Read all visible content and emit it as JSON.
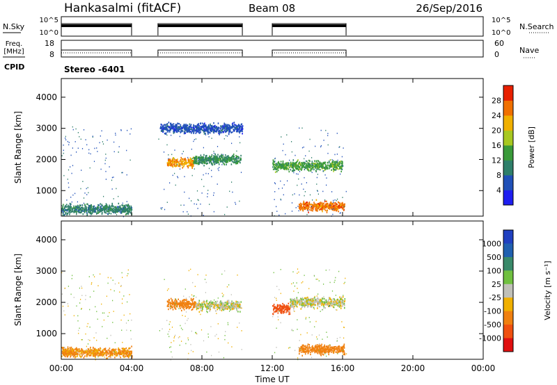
{
  "header": {
    "station": "Hankasalmi (fitACF)",
    "beam": "Beam 08",
    "date": "26/Sep/2016"
  },
  "status_panels": {
    "nsky_label": "N.Sky",
    "nsky_ticks": [
      "10^5",
      "10^0"
    ],
    "nsearch_label": "N.Search",
    "nsearch_ticks": [
      "10^5",
      "10^0"
    ],
    "freq_label": "Freq.",
    "freq_unit": "[MHz]",
    "freq_ticks": [
      "18",
      "8"
    ],
    "nave_label": "Nave",
    "nave_ticks": [
      "60",
      "0"
    ],
    "cpid_label": "CPID",
    "cpid_value": "Stereo -6401"
  },
  "colors": {
    "power": [
      "#1e1ef0",
      "#2050b8",
      "#2f7f6a",
      "#3a9a3a",
      "#a8c820",
      "#f0b000",
      "#f07000",
      "#e82000"
    ],
    "velocity": [
      "#2040c0",
      "#2060b0",
      "#3a8a6a",
      "#70c040",
      "#c0c0b8",
      "#f0b000",
      "#f08010",
      "#f05010",
      "#e01010"
    ]
  },
  "chart_data": [
    {
      "type": "heatmap",
      "name": "Power",
      "ylabel": "Slant Range [km]",
      "xlabel": "",
      "x_ticks": [
        "00:00",
        "04:00",
        "08:00",
        "12:00",
        "16:00",
        "20:00",
        "00:00"
      ],
      "x_range_hours": [
        0,
        24
      ],
      "ylim": [
        180,
        4600
      ],
      "y_ticks": [
        1000,
        2000,
        3000,
        4000
      ],
      "colorbar_label": "Power [dB]",
      "colorbar_ticks": [
        4,
        8,
        12,
        16,
        20,
        24,
        28
      ],
      "colorbar_range": [
        0,
        32
      ],
      "data_intervals_hours": [
        [
          0,
          4
        ],
        [
          5.5,
          10.3
        ],
        [
          12,
          16.2
        ]
      ],
      "features": [
        {
          "t_start": 0.0,
          "t_end": 4.0,
          "range_km": 400,
          "value_db": 10
        },
        {
          "t_start": 5.6,
          "t_end": 10.3,
          "range_km": 3000,
          "value_db": 6
        },
        {
          "t_start": 6.0,
          "t_end": 7.5,
          "range_km": 1900,
          "value_db": 24
        },
        {
          "t_start": 7.5,
          "t_end": 10.2,
          "range_km": 2000,
          "value_db": 12
        },
        {
          "t_start": 12.0,
          "t_end": 16.0,
          "range_km": 1800,
          "value_db": 14
        },
        {
          "t_start": 13.5,
          "t_end": 16.1,
          "range_km": 500,
          "value_db": 26
        }
      ]
    },
    {
      "type": "heatmap",
      "name": "Velocity",
      "ylabel": "Slant Range [km]",
      "xlabel": "Time UT",
      "x_ticks": [
        "00:00",
        "04:00",
        "08:00",
        "12:00",
        "16:00",
        "20:00",
        "00:00"
      ],
      "x_range_hours": [
        0,
        24
      ],
      "ylim": [
        180,
        4600
      ],
      "y_ticks": [
        1000,
        2000,
        3000,
        4000
      ],
      "colorbar_label": "Velocity [m s⁻¹]",
      "colorbar_ticks": [
        1000,
        500,
        100,
        25,
        -25,
        -100,
        -500,
        -1000
      ],
      "data_intervals_hours": [
        [
          0,
          4
        ],
        [
          5.5,
          10.3
        ],
        [
          12,
          16.2
        ]
      ],
      "features": [
        {
          "t_start": 0.0,
          "t_end": 4.0,
          "range_km": 400,
          "value_ms": -120
        },
        {
          "t_start": 6.0,
          "t_end": 7.6,
          "range_km": 1950,
          "value_ms": -400
        },
        {
          "t_start": 7.6,
          "t_end": 10.2,
          "range_km": 1900,
          "value_ms": 0
        },
        {
          "t_start": 12.0,
          "t_end": 13.0,
          "range_km": 1800,
          "value_ms": -600
        },
        {
          "t_start": 13.0,
          "t_end": 16.1,
          "range_km": 2000,
          "value_ms": 0
        },
        {
          "t_start": 13.5,
          "t_end": 16.1,
          "range_km": 500,
          "value_ms": -200
        }
      ]
    }
  ]
}
